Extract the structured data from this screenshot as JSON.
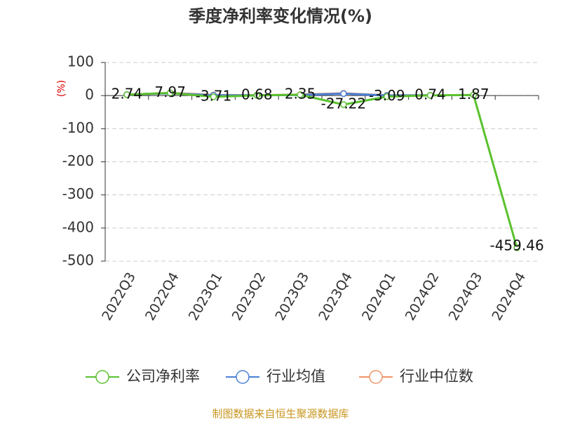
{
  "chart_data": {
    "type": "line",
    "title": "季度净利率变化情况(%)",
    "y_label": "(%)",
    "categories": [
      "2022Q3",
      "2022Q4",
      "2023Q1",
      "2023Q2",
      "2023Q3",
      "2023Q4",
      "2024Q1",
      "2024Q2",
      "2024Q3",
      "2024Q4"
    ],
    "series": [
      {
        "name": "公司净利率",
        "color": "#5ac12e",
        "values": [
          2.74,
          7.97,
          -3.71,
          0.68,
          2.35,
          -27.22,
          -3.09,
          0.74,
          1.87,
          -459.46
        ]
      },
      {
        "name": "行业均值",
        "color": "#4a7fd6",
        "values": [
          3,
          7,
          1,
          1,
          2,
          6,
          0,
          1,
          null,
          null
        ]
      },
      {
        "name": "行业中位数",
        "color": "#f0956a",
        "values": [
          3,
          8,
          2,
          1,
          3,
          7,
          1,
          1,
          null,
          null
        ]
      }
    ],
    "ylim": [
      -500,
      100
    ],
    "yticks": [
      100,
      0,
      -100,
      -200,
      -300,
      -400,
      -500
    ],
    "grid": true,
    "source": "制图数据来自恒生聚源数据库"
  }
}
